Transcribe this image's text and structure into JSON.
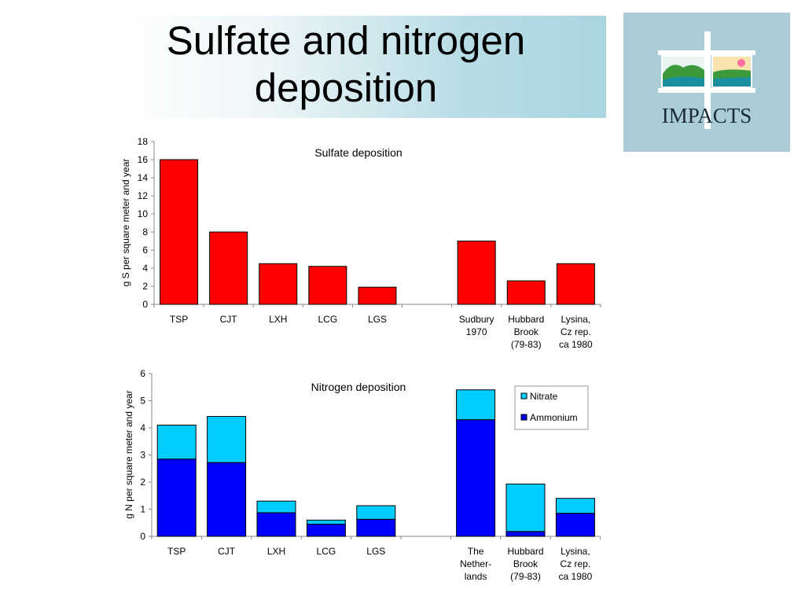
{
  "slide": {
    "title_line1": "Sulfate and nitrogen",
    "title_line2": "deposition"
  },
  "logo": {
    "text": "IMPACTS",
    "colors": {
      "background": "#a9ccd7",
      "frame": "#ffffff",
      "land": "#3c9a3c",
      "water": "#1a8fa0",
      "sun": "#ff6fa0"
    }
  },
  "chart_data": [
    {
      "type": "bar",
      "title": "Sulfate deposition",
      "ylabel": "g S per square meter and year",
      "ylim": [
        0,
        18
      ],
      "yticks": [
        0,
        2,
        4,
        6,
        8,
        10,
        12,
        14,
        16,
        18
      ],
      "categories": [
        "TSP",
        "CJT",
        "LXH",
        "LCG",
        "LGS",
        "",
        "Sudbury 1970",
        "Hubbard Brook (79-83)",
        "Lysina, Cz rep. ca 1980"
      ],
      "category_lines": [
        [
          "TSP"
        ],
        [
          "CJT"
        ],
        [
          "LXH"
        ],
        [
          "LCG"
        ],
        [
          "LGS"
        ],
        [],
        [
          "Sudbury",
          "1970"
        ],
        [
          "Hubbard",
          "Brook",
          "(79-83)"
        ],
        [
          "Lysina,",
          "Cz rep.",
          "ca 1980"
        ]
      ],
      "values": [
        16.0,
        8.0,
        4.5,
        4.2,
        1.9,
        null,
        7.0,
        2.6,
        4.5
      ],
      "color": "#ff0000",
      "grid": false
    },
    {
      "type": "bar",
      "stacked": true,
      "title": "Nitrogen deposition",
      "ylabel": "g N per square meter and year",
      "ylim": [
        0,
        6
      ],
      "yticks": [
        0,
        1,
        2,
        3,
        4,
        5,
        6
      ],
      "categories": [
        "TSP",
        "CJT",
        "LXH",
        "LCG",
        "LGS",
        "",
        "The Nether-lands",
        "Hubbard Brook (79-83)",
        "Lysina, Cz rep. ca 1980"
      ],
      "category_lines": [
        [
          "TSP"
        ],
        [
          "CJT"
        ],
        [
          "LXH"
        ],
        [
          "LCG"
        ],
        [
          "LGS"
        ],
        [],
        [
          "The",
          "Nether-",
          "lands"
        ],
        [
          "Hubbard",
          "Brook",
          "(79-83)"
        ],
        [
          "Lysina,",
          "Cz rep.",
          "ca 1980"
        ]
      ],
      "series": [
        {
          "name": "Ammonium",
          "color": "#0000ff",
          "values": [
            2.85,
            2.72,
            0.87,
            0.45,
            0.63,
            null,
            4.3,
            0.18,
            0.85
          ]
        },
        {
          "name": "Nitrate",
          "color": "#00ccff",
          "values": [
            1.25,
            1.7,
            0.43,
            0.15,
            0.5,
            null,
            1.1,
            1.75,
            0.55
          ]
        }
      ],
      "legend": {
        "position": "top-right",
        "order": [
          "Nitrate",
          "Ammonium"
        ]
      },
      "grid": false
    }
  ]
}
